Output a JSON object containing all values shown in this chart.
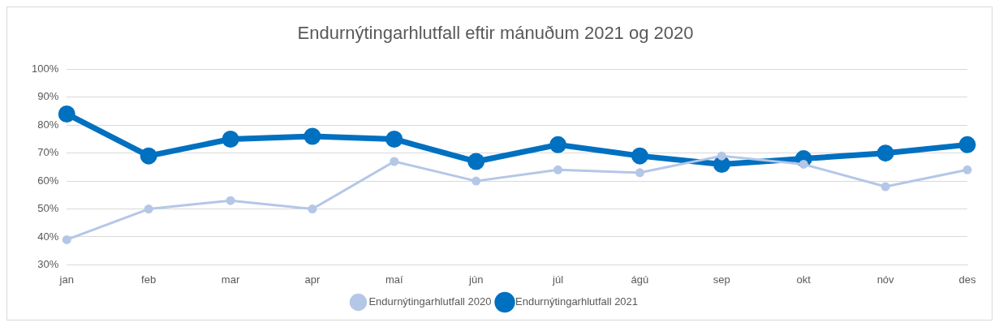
{
  "chart_data": {
    "type": "line",
    "title": "Endurnýtingarhlutfall eftir mánuðum 2021 og 2020",
    "categories": [
      "jan",
      "feb",
      "mar",
      "apr",
      "maí",
      "jún",
      "júl",
      "ágú",
      "sep",
      "okt",
      "nóv",
      "des"
    ],
    "series": [
      {
        "name": "Endurnýtingarhlutfall 2021",
        "color": "#0070c0",
        "values": [
          84,
          69,
          75,
          76,
          75,
          67,
          73,
          69,
          66,
          68,
          70,
          73
        ]
      },
      {
        "name": "Endurnýtingarhlutfall 2020",
        "color": "#b4c7e7",
        "values": [
          39,
          50,
          53,
          50,
          67,
          60,
          64,
          63,
          69,
          66,
          58,
          64
        ]
      }
    ],
    "ylim": [
      30,
      100
    ],
    "yticks": [
      {
        "value": 30,
        "label": "30%"
      },
      {
        "value": 40,
        "label": "40%"
      },
      {
        "value": 50,
        "label": "50%"
      },
      {
        "value": 60,
        "label": "60%"
      },
      {
        "value": 70,
        "label": "70%"
      },
      {
        "value": 80,
        "label": "80%"
      },
      {
        "value": 90,
        "label": "90%"
      },
      {
        "value": 100,
        "label": "100%"
      }
    ],
    "grid": "y",
    "legend": "bottom",
    "marker": "circle",
    "line_style": "solid"
  }
}
